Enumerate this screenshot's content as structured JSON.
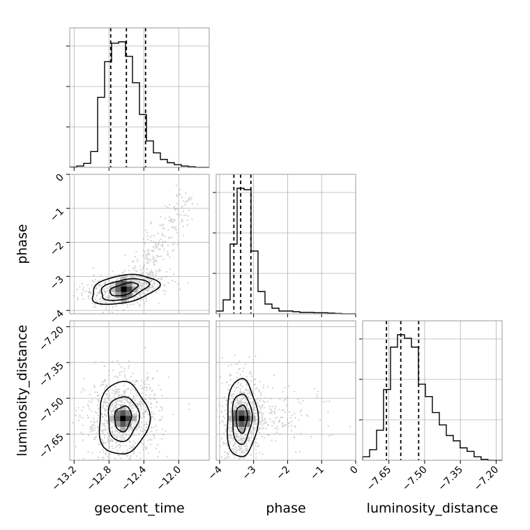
{
  "chart_data": {
    "type": "corner",
    "parameters": [
      "geocent_time",
      "phase",
      "luminosity_distance"
    ],
    "grid": true,
    "colors": {
      "line": "#000000",
      "grid": "#b0b0b0",
      "points": "#aaaaaa"
    },
    "ranges": {
      "geocent_time": [
        -13.25,
        -11.65
      ],
      "phase": [
        -4.1,
        0.0
      ],
      "luminosity_distance": [
        -7.76,
        -7.175
      ]
    },
    "ticks": {
      "geocent_time": [
        -13.2,
        -12.8,
        -12.4,
        -12.0
      ],
      "phase": [
        -4,
        -3,
        -2,
        -1,
        0
      ],
      "luminosity_distance": [
        -7.65,
        -7.5,
        -7.35,
        -7.2
      ]
    },
    "tick_labels": {
      "geocent_time": [
        "−13.2",
        "−12.8",
        "−12.4",
        "−12.0"
      ],
      "phase": [
        "−4",
        "−3",
        "−2",
        "−1",
        "0"
      ],
      "luminosity_distance": [
        "−7.65",
        "−7.50",
        "−7.35",
        "−7.20"
      ]
    },
    "quantiles": {
      "geocent_time": [
        -12.78,
        -12.6,
        -12.38
      ],
      "phase": [
        -3.58,
        -3.38,
        -3.08
      ],
      "luminosity_distance": [
        -7.66,
        -7.6,
        -7.525
      ]
    },
    "histograms": {
      "geocent_time": {
        "edges": [
          -13.25,
          -13.17,
          -13.09,
          -13.01,
          -12.93,
          -12.85,
          -12.77,
          -12.69,
          -12.61,
          -12.53,
          -12.45,
          -12.37,
          -12.29,
          -12.21,
          -12.13,
          -12.05,
          -11.97,
          -11.89,
          -11.81,
          -11.73,
          -11.65
        ],
        "counts": [
          0.2,
          1,
          3,
          12,
          53,
          80,
          94,
          95,
          84,
          64,
          40,
          20,
          11,
          6,
          3.5,
          2,
          1,
          0.5,
          0,
          0
        ]
      },
      "phase": {
        "edges": [
          -4.1,
          -3.895,
          -3.69,
          -3.485,
          -3.28,
          -3.075,
          -2.87,
          -2.665,
          -2.46,
          -2.255,
          -2.05,
          -1.845,
          -1.64,
          -1.435,
          -1.23,
          -1.025,
          -0.82,
          -0.615,
          -0.41,
          -0.205,
          0.0
        ],
        "counts": [
          2,
          10,
          50,
          90,
          89,
          45,
          16,
          7,
          4,
          2,
          2,
          1.5,
          1,
          1,
          0.8,
          0.8,
          0.5,
          0.3,
          0,
          0
        ]
      },
      "luminosity_distance": {
        "edges": [
          -7.76,
          -7.73075,
          -7.7015,
          -7.67225,
          -7.643,
          -7.61375,
          -7.5845,
          -7.55525,
          -7.526,
          -7.49675,
          -7.4675,
          -7.43825,
          -7.409,
          -7.37975,
          -7.351,
          -7.32175,
          -7.2925,
          -7.26325,
          -7.234,
          -7.20475,
          -7.1755
        ],
        "counts": [
          2,
          6,
          17,
          40,
          64,
          71,
          69,
          64,
          43,
          36,
          27,
          20,
          14,
          11,
          7,
          5,
          2,
          0.5,
          0,
          0
        ]
      }
    },
    "pairs": [
      {
        "x": "geocent_time",
        "y": "phase"
      },
      {
        "x": "geocent_time",
        "y": "luminosity_distance"
      },
      {
        "x": "phase",
        "y": "luminosity_distance"
      }
    ]
  }
}
